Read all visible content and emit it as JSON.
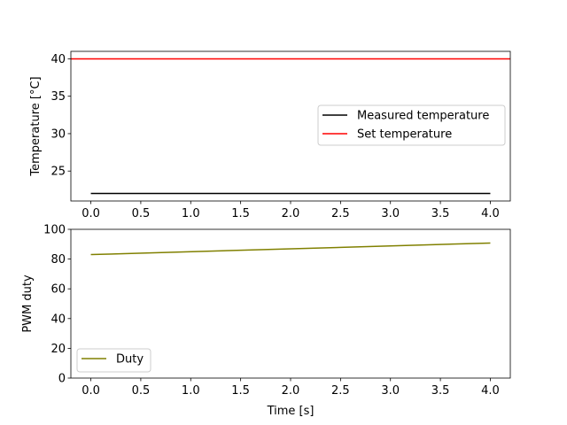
{
  "chart_data": [
    {
      "type": "line",
      "title": "",
      "xlabel": "",
      "ylabel": "Temperature [°C]",
      "xlim": [
        -0.2,
        4.2
      ],
      "ylim": [
        21.0,
        41.0
      ],
      "xticks": [
        0.0,
        0.5,
        1.0,
        1.5,
        2.0,
        2.5,
        3.0,
        3.5,
        4.0
      ],
      "xtick_labels": [
        "0.0",
        "0.5",
        "1.0",
        "1.5",
        "2.0",
        "2.5",
        "3.0",
        "3.5",
        "4.0"
      ],
      "yticks": [
        25,
        30,
        35,
        40
      ],
      "ytick_labels": [
        "25",
        "30",
        "35",
        "40"
      ],
      "legend_position": "center-right",
      "series": [
        {
          "name": "Measured temperature",
          "color": "#000000",
          "x": [
            0.0,
            4.0
          ],
          "y": [
            22.0,
            22.0
          ]
        },
        {
          "name": "Set temperature",
          "color": "#ff0000",
          "x": [
            -0.2,
            4.2
          ],
          "y": [
            40.0,
            40.0
          ]
        }
      ]
    },
    {
      "type": "line",
      "title": "",
      "xlabel": "Time [s]",
      "ylabel": "PWM duty",
      "xlim": [
        -0.2,
        4.2
      ],
      "ylim": [
        0,
        100
      ],
      "xticks": [
        0.0,
        0.5,
        1.0,
        1.5,
        2.0,
        2.5,
        3.0,
        3.5,
        4.0
      ],
      "xtick_labels": [
        "0.0",
        "0.5",
        "1.0",
        "1.5",
        "2.0",
        "2.5",
        "3.0",
        "3.5",
        "4.0"
      ],
      "yticks": [
        0,
        20,
        40,
        60,
        80,
        100
      ],
      "ytick_labels": [
        "0",
        "20",
        "40",
        "60",
        "80",
        "100"
      ],
      "legend_position": "lower-left",
      "series": [
        {
          "name": "Duty",
          "color": "#808000",
          "x": [
            0.0,
            4.0
          ],
          "y": [
            83.0,
            90.8
          ]
        }
      ]
    }
  ]
}
